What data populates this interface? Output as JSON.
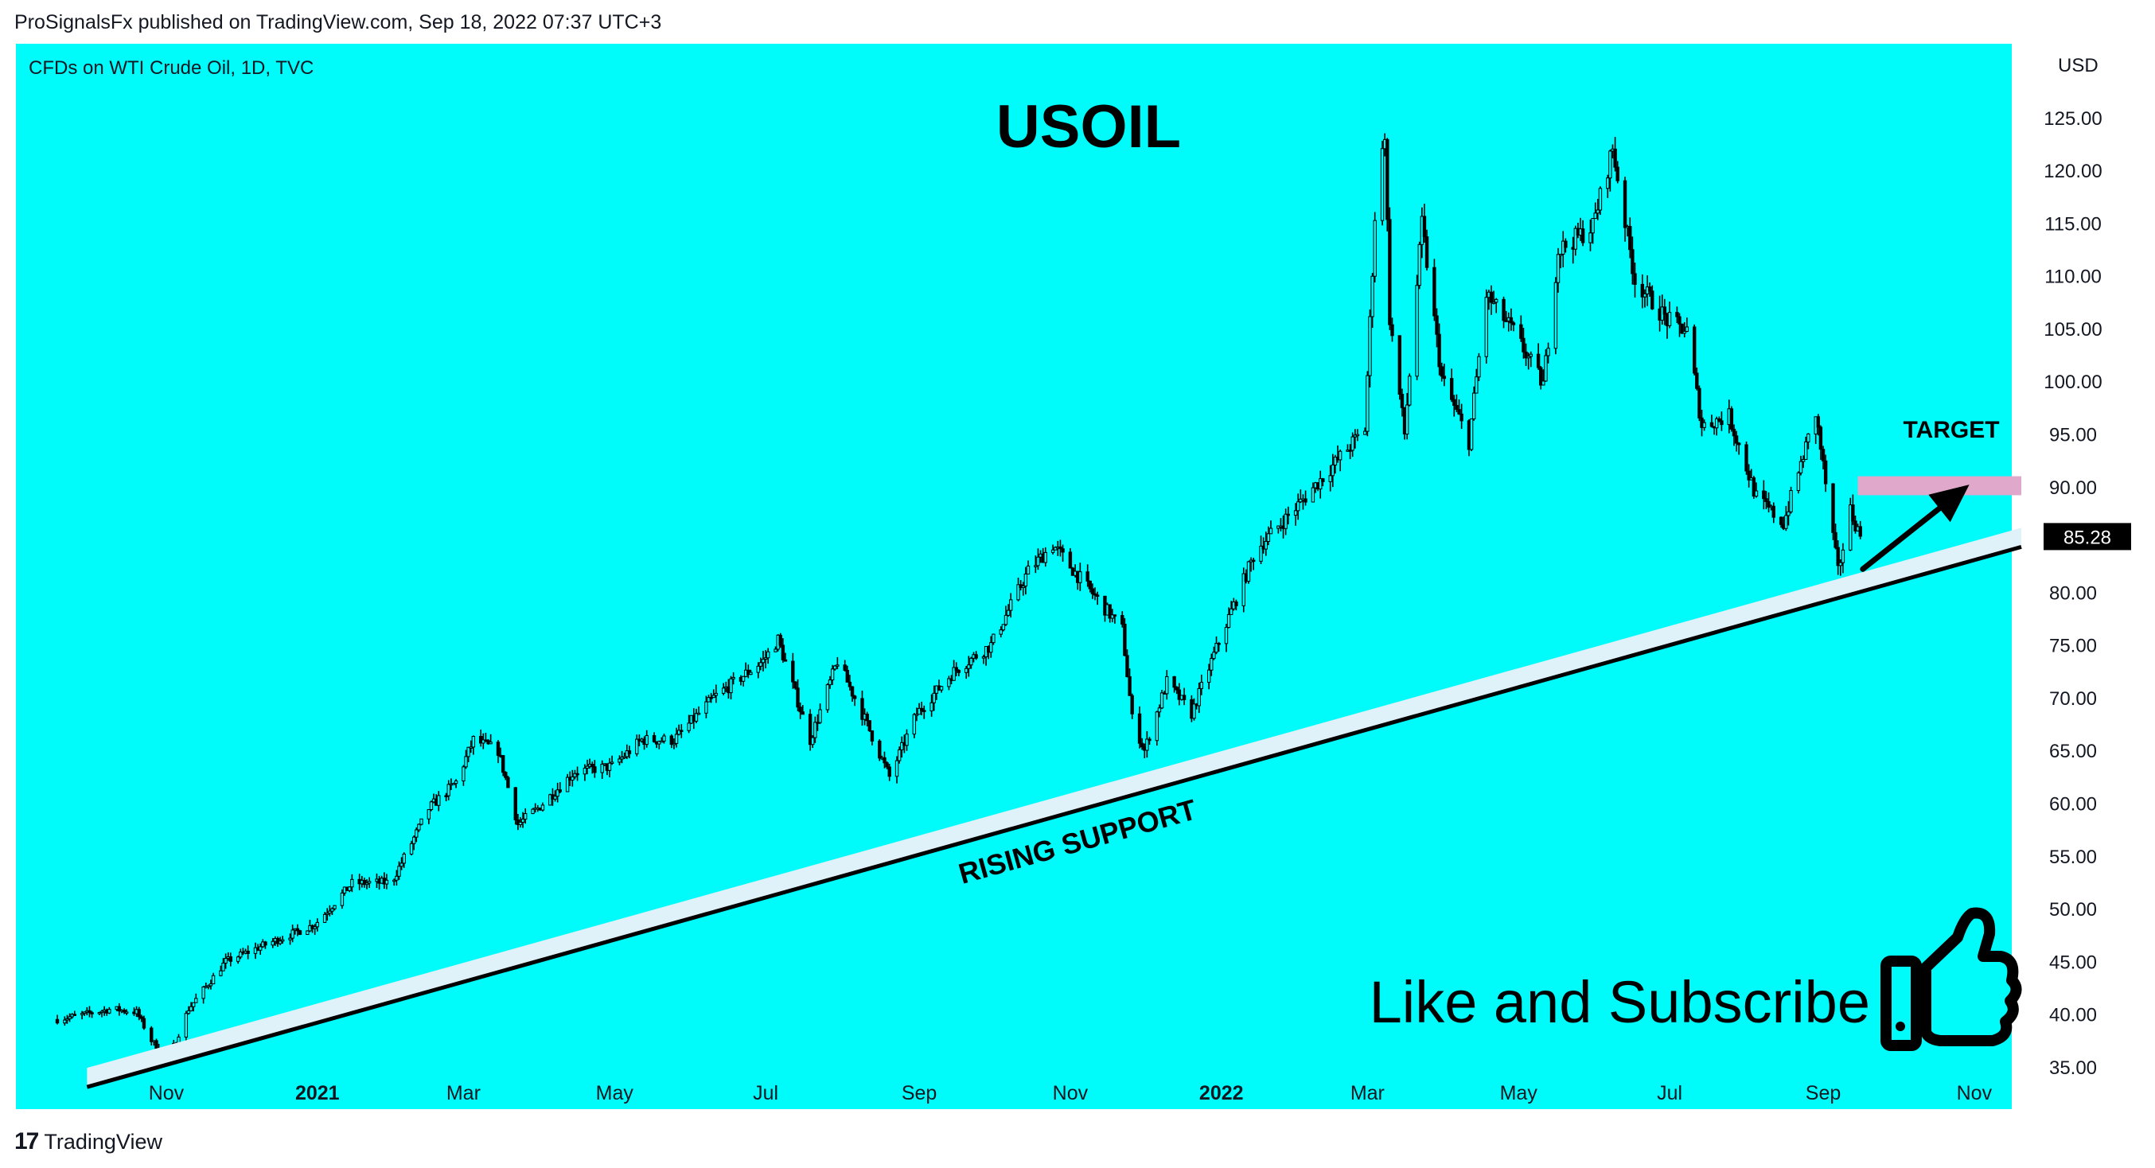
{
  "header": {
    "published": "ProSignalsFx published on TradingView.com, Sep 18, 2022 07:37 UTC+3"
  },
  "footer": {
    "logo_icon": "tradingview-logo-icon",
    "brand": "TradingView"
  },
  "colors": {
    "background": "#00fbfb",
    "candle": "#000000",
    "support_band": "#dff2fa",
    "target_zone": "#e0a8cb",
    "price_badge": "#000000"
  },
  "chart_data": {
    "type": "candlestick",
    "instrument": "CFDs on WTI Crude Oil, 1D, TVC",
    "title": "USOIL",
    "currency": "USD",
    "ylim": [
      31,
      132
    ],
    "y_ticks": [
      "125.00",
      "120.00",
      "115.00",
      "110.00",
      "105.00",
      "100.00",
      "95.00",
      "90.00",
      "85.00",
      "80.00",
      "75.00",
      "70.00",
      "65.00",
      "60.00",
      "55.00",
      "50.00",
      "45.00",
      "40.00",
      "35.00"
    ],
    "x_ticks": [
      {
        "label": "Nov",
        "date": "2020-11-01",
        "bold": false
      },
      {
        "label": "2021",
        "date": "2021-01-01",
        "bold": true
      },
      {
        "label": "Mar",
        "date": "2021-03-01",
        "bold": false
      },
      {
        "label": "May",
        "date": "2021-05-01",
        "bold": false
      },
      {
        "label": "Jul",
        "date": "2021-07-01",
        "bold": false
      },
      {
        "label": "Sep",
        "date": "2021-09-01",
        "bold": false
      },
      {
        "label": "Nov",
        "date": "2021-11-01",
        "bold": false
      },
      {
        "label": "2022",
        "date": "2022-01-01",
        "bold": true
      },
      {
        "label": "Mar",
        "date": "2022-03-01",
        "bold": false
      },
      {
        "label": "May",
        "date": "2022-05-01",
        "bold": false
      },
      {
        "label": "Jul",
        "date": "2022-07-01",
        "bold": false
      },
      {
        "label": "Sep",
        "date": "2022-09-01",
        "bold": false
      },
      {
        "label": "Nov",
        "date": "2022-11-01",
        "bold": false
      }
    ],
    "xlim": [
      "2020-09-18",
      "2022-11-20"
    ],
    "last_price": "85.28",
    "price_path": [
      [
        "2020-09-18",
        39.5
      ],
      [
        "2020-10-10",
        40.5
      ],
      [
        "2020-10-20",
        40.2
      ],
      [
        "2020-10-26",
        37.5
      ],
      [
        "2020-11-02",
        35.8
      ],
      [
        "2020-11-10",
        40.5
      ],
      [
        "2020-11-25",
        45
      ],
      [
        "2020-12-10",
        46.5
      ],
      [
        "2020-12-31",
        48.5
      ],
      [
        "2021-01-15",
        52.4
      ],
      [
        "2021-01-31",
        52.5
      ],
      [
        "2021-02-15",
        59.5
      ],
      [
        "2021-02-26",
        62
      ],
      [
        "2021-03-05",
        66
      ],
      [
        "2021-03-15",
        65
      ],
      [
        "2021-03-23",
        58
      ],
      [
        "2021-03-31",
        59.5
      ],
      [
        "2021-04-15",
        63
      ],
      [
        "2021-04-30",
        63.5
      ],
      [
        "2021-05-12",
        66
      ],
      [
        "2021-05-25",
        66
      ],
      [
        "2021-06-10",
        70
      ],
      [
        "2021-06-30",
        73.5
      ],
      [
        "2021-07-06",
        75.5
      ],
      [
        "2021-07-19",
        66
      ],
      [
        "2021-07-30",
        73.5
      ],
      [
        "2021-08-10",
        68
      ],
      [
        "2021-08-20",
        62.5
      ],
      [
        "2021-08-31",
        68.5
      ],
      [
        "2021-09-15",
        72.5
      ],
      [
        "2021-09-30",
        75
      ],
      [
        "2021-10-15",
        82
      ],
      [
        "2021-10-25",
        84.5
      ],
      [
        "2021-11-05",
        81.3
      ],
      [
        "2021-11-22",
        76.5
      ],
      [
        "2021-11-26",
        68
      ],
      [
        "2021-12-01",
        65
      ],
      [
        "2021-12-10",
        71.5
      ],
      [
        "2021-12-20",
        68.5
      ],
      [
        "2021-12-31",
        75.3
      ],
      [
        "2022-01-15",
        84
      ],
      [
        "2022-01-31",
        88
      ],
      [
        "2022-02-15",
        92
      ],
      [
        "2022-02-28",
        95.5
      ],
      [
        "2022-03-04",
        115.7
      ],
      [
        "2022-03-08",
        123.7
      ],
      [
        "2022-03-10",
        106
      ],
      [
        "2022-03-16",
        95
      ],
      [
        "2022-03-23",
        114.9
      ],
      [
        "2022-03-31",
        100.3
      ],
      [
        "2022-04-11",
        94.3
      ],
      [
        "2022-04-18",
        108.2
      ],
      [
        "2022-04-29",
        104.7
      ],
      [
        "2022-05-11",
        99.7
      ],
      [
        "2022-05-17",
        112.4
      ],
      [
        "2022-05-31",
        114.7
      ],
      [
        "2022-06-08",
        122.1
      ],
      [
        "2022-06-17",
        109.6
      ],
      [
        "2022-06-30",
        105.8
      ],
      [
        "2022-07-08",
        104.8
      ],
      [
        "2022-07-14",
        95.8
      ],
      [
        "2022-07-25",
        96.7
      ],
      [
        "2022-08-05",
        89
      ],
      [
        "2022-08-16",
        86.5
      ],
      [
        "2022-08-29",
        97
      ],
      [
        "2022-09-07",
        81.9
      ],
      [
        "2022-09-12",
        87.8
      ],
      [
        "2022-09-16",
        85.28
      ]
    ],
    "annotations": [
      {
        "text": "RISING SUPPORT",
        "type": "support-line",
        "from": [
          "2020-09-30",
          33.1
        ],
        "to": [
          "2022-11-20",
          84.3
        ]
      },
      {
        "text": "TARGET",
        "type": "target-zone",
        "from_date": "2022-09-15",
        "to_date": "2022-11-20",
        "range": [
          89.2,
          91.0
        ]
      },
      {
        "text": "",
        "type": "arrow",
        "from": [
          "2022-09-17",
          82.2
        ],
        "to": [
          "2022-10-30",
          90.2
        ]
      },
      {
        "text": "Like and Subscribe",
        "type": "callout",
        "icon": "thumbs-up-icon"
      }
    ]
  }
}
